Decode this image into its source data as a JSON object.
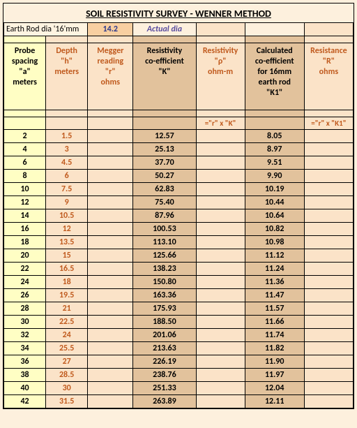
{
  "title": "SOIL RESISTIVITY SURVEY - WENNER METHOD",
  "param": {
    "label": "Earth Rod dia '16'mm",
    "value": "14.2",
    "actual_label": "Actual dia"
  },
  "columns": {
    "a": {
      "lines": [
        "Probe",
        "spacing",
        "\"a\"",
        "meters"
      ]
    },
    "h": {
      "lines": [
        "Depth",
        "\"h\"",
        "meters"
      ]
    },
    "r": {
      "lines": [
        "Megger",
        "reading",
        "\"r\"",
        "ohms"
      ]
    },
    "k": {
      "lines": [
        "Resistivity",
        "co-efficient",
        "\"K\""
      ]
    },
    "p": {
      "lines": [
        "Resistivity",
        "\"ρ\"",
        "ohm-m"
      ]
    },
    "k1": {
      "lines": [
        "Calculated",
        "co-efficient",
        "for 16mm",
        "earth rod",
        "\"K1\""
      ]
    },
    "R": {
      "lines": [
        "Resistance",
        "\"R\"",
        "ohms"
      ]
    }
  },
  "col_widths_pct": [
    12,
    12,
    13,
    18,
    14,
    17,
    14
  ],
  "formula": {
    "p": "=\"r\" x \"K\"",
    "R": "=\"r\" x \"K1\""
  },
  "rows": [
    {
      "a": "2",
      "h": "1.5",
      "r": "",
      "k": "12.57",
      "p": "",
      "k1": "8.05",
      "R": ""
    },
    {
      "a": "4",
      "h": "3",
      "r": "",
      "k": "25.13",
      "p": "",
      "k1": "8.97",
      "R": ""
    },
    {
      "a": "6",
      "h": "4.5",
      "r": "",
      "k": "37.70",
      "p": "",
      "k1": "9.51",
      "R": ""
    },
    {
      "a": "8",
      "h": "6",
      "r": "",
      "k": "50.27",
      "p": "",
      "k1": "9.90",
      "R": ""
    },
    {
      "a": "10",
      "h": "7.5",
      "r": "",
      "k": "62.83",
      "p": "",
      "k1": "10.19",
      "R": ""
    },
    {
      "a": "12",
      "h": "9",
      "r": "",
      "k": "75.40",
      "p": "",
      "k1": "10.44",
      "R": ""
    },
    {
      "a": "14",
      "h": "10.5",
      "r": "",
      "k": "87.96",
      "p": "",
      "k1": "10.64",
      "R": ""
    },
    {
      "a": "16",
      "h": "12",
      "r": "",
      "k": "100.53",
      "p": "",
      "k1": "10.82",
      "R": ""
    },
    {
      "a": "18",
      "h": "13.5",
      "r": "",
      "k": "113.10",
      "p": "",
      "k1": "10.98",
      "R": ""
    },
    {
      "a": "20",
      "h": "15",
      "r": "",
      "k": "125.66",
      "p": "",
      "k1": "11.12",
      "R": ""
    },
    {
      "a": "22",
      "h": "16.5",
      "r": "",
      "k": "138.23",
      "p": "",
      "k1": "11.24",
      "R": ""
    },
    {
      "a": "24",
      "h": "18",
      "r": "",
      "k": "150.80",
      "p": "",
      "k1": "11.36",
      "R": ""
    },
    {
      "a": "26",
      "h": "19.5",
      "r": "",
      "k": "163.36",
      "p": "",
      "k1": "11.47",
      "R": ""
    },
    {
      "a": "28",
      "h": "21",
      "r": "",
      "k": "175.93",
      "p": "",
      "k1": "11.57",
      "R": ""
    },
    {
      "a": "30",
      "h": "22.5",
      "r": "",
      "k": "188.50",
      "p": "",
      "k1": "11.66",
      "R": ""
    },
    {
      "a": "32",
      "h": "24",
      "r": "",
      "k": "201.06",
      "p": "",
      "k1": "11.74",
      "R": ""
    },
    {
      "a": "34",
      "h": "25.5",
      "r": "",
      "k": "213.63",
      "p": "",
      "k1": "11.82",
      "R": ""
    },
    {
      "a": "36",
      "h": "27",
      "r": "",
      "k": "226.19",
      "p": "",
      "k1": "11.90",
      "R": ""
    },
    {
      "a": "38",
      "h": "28.5",
      "r": "",
      "k": "238.76",
      "p": "",
      "k1": "11.97",
      "R": ""
    },
    {
      "a": "40",
      "h": "30",
      "r": "",
      "k": "251.33",
      "p": "",
      "k1": "12.04",
      "R": ""
    },
    {
      "a": "42",
      "h": "31.5",
      "r": "",
      "k": "263.89",
      "p": "",
      "k1": "12.11",
      "R": ""
    }
  ],
  "colors": {
    "page_bg": "#fdf0dd",
    "yellow": "#fffec4",
    "peach": "#fbe3c8",
    "tan": "#e2c29c",
    "orange_text": "#c05a1e",
    "blue_text": "#2e3a8c",
    "purple_text": "#5a4ea0"
  }
}
